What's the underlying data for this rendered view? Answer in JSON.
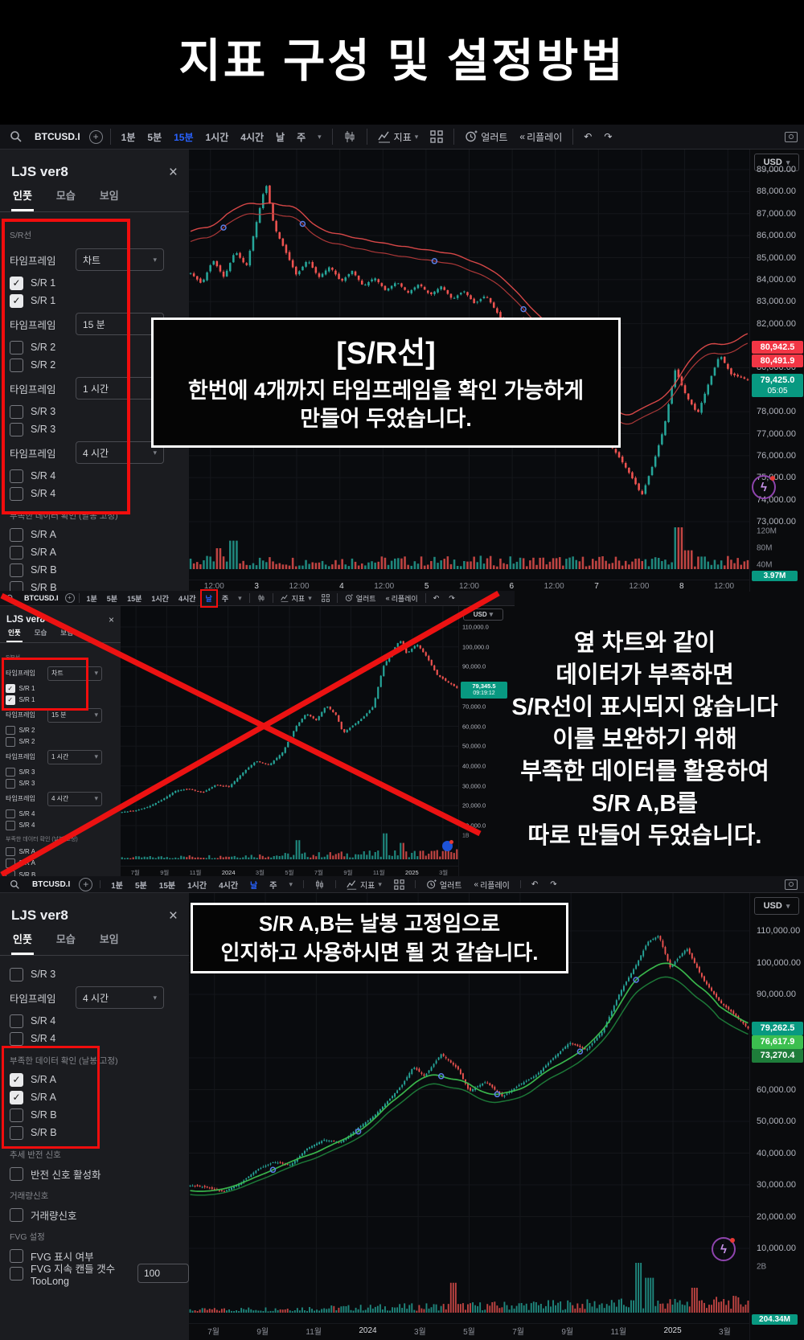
{
  "page": {
    "title": "지표 구성 및 설정방법"
  },
  "colors": {
    "accent": "#2962ff",
    "candle_up": "#26a69a",
    "candle_down": "#ef5350",
    "badge_red": "#f23645",
    "badge_teal": "#089981",
    "badge_green_light": "#3cbf4f",
    "badge_green_dark": "#1e7d3a",
    "annotation_red": "#f10d0d"
  },
  "toolbar": {
    "symbol": "BTCUSD.I",
    "timeframes": [
      "1분",
      "5분",
      "15분",
      "1시간",
      "4시간",
      "날",
      "주"
    ],
    "indicator_label": "지표",
    "alert_label": "얼러트",
    "replay_label": "리플레이",
    "currency": "USD"
  },
  "panel": {
    "title": "LJS ver8",
    "tabs": [
      "인풋",
      "모습",
      "보임"
    ],
    "close_glyph": "×"
  },
  "section1": {
    "active_tf": "15분",
    "rows": [
      {
        "t": "label",
        "text": "S/R선"
      },
      {
        "t": "drop",
        "label": "타임프레임",
        "value": "차트"
      },
      {
        "t": "check",
        "label": "S/R 1",
        "on": true
      },
      {
        "t": "check",
        "label": "S/R 1",
        "on": true
      },
      {
        "t": "drop",
        "label": "타임프레임",
        "value": "15 분"
      },
      {
        "t": "check",
        "label": "S/R 2",
        "on": false
      },
      {
        "t": "check",
        "label": "S/R 2",
        "on": false
      },
      {
        "t": "drop",
        "label": "타임프레임",
        "value": "1 시간"
      },
      {
        "t": "check",
        "label": "S/R 3",
        "on": false
      },
      {
        "t": "check",
        "label": "S/R 3",
        "on": false
      },
      {
        "t": "drop",
        "label": "타임프레임",
        "value": "4 시간"
      },
      {
        "t": "check",
        "label": "S/R 4",
        "on": false
      },
      {
        "t": "check",
        "label": "S/R 4",
        "on": false
      },
      {
        "t": "label",
        "text": "부족한 데이터 확인 (날봉 고정)"
      },
      {
        "t": "check",
        "label": "S/R A",
        "on": false
      },
      {
        "t": "check",
        "label": "S/R A",
        "on": false
      },
      {
        "t": "check",
        "label": "S/R B",
        "on": false
      },
      {
        "t": "check",
        "label": "S/R B",
        "on": false
      }
    ],
    "overlay": {
      "title": "[S/R선]",
      "lines": [
        "한번에 4개까지 타임프레임을 확인 가능하게",
        "만들어 두었습니다."
      ]
    }
  },
  "section2": {
    "active_tf": "날",
    "boxed_tf": "날",
    "rows": [
      {
        "t": "label",
        "text": "S/R선"
      },
      {
        "t": "drop",
        "label": "타임프레임",
        "value": "차트"
      },
      {
        "t": "check",
        "label": "S/R 1",
        "on": true
      },
      {
        "t": "check",
        "label": "S/R 1",
        "on": true
      },
      {
        "t": "drop",
        "label": "타임프레임",
        "value": "15 분"
      },
      {
        "t": "check",
        "label": "S/R 2",
        "on": false
      },
      {
        "t": "check",
        "label": "S/R 2",
        "on": false
      },
      {
        "t": "drop",
        "label": "타임프레임",
        "value": "1 시간"
      },
      {
        "t": "check",
        "label": "S/R 3",
        "on": false
      },
      {
        "t": "check",
        "label": "S/R 3",
        "on": false
      },
      {
        "t": "drop",
        "label": "타임프레임",
        "value": "4 시간"
      },
      {
        "t": "check",
        "label": "S/R 4",
        "on": false
      },
      {
        "t": "check",
        "label": "S/R 4",
        "on": false
      },
      {
        "t": "label",
        "text": "부족한 데이터 확인 (날봉 고정)"
      },
      {
        "t": "check",
        "label": "S/R A",
        "on": false
      },
      {
        "t": "check",
        "label": "S/R A",
        "on": false
      },
      {
        "t": "check",
        "label": "S/R B",
        "on": false
      },
      {
        "t": "check",
        "label": "S/R B",
        "on": false
      }
    ],
    "note_lines": [
      "옆 차트와 같이",
      "데이터가 부족하면",
      "S/R선이 표시되지 않습니다",
      "이를 보완하기 위해",
      "부족한 데이터를 활용하여",
      "S/R A,B를",
      "따로 만들어 두었습니다."
    ]
  },
  "section3": {
    "active_tf": "날",
    "rows": [
      {
        "t": "check",
        "label": "S/R 3",
        "on": false
      },
      {
        "t": "drop",
        "label": "타임프레임",
        "value": "4 시간"
      },
      {
        "t": "check",
        "label": "S/R 4",
        "on": false
      },
      {
        "t": "check",
        "label": "S/R 4",
        "on": false
      },
      {
        "t": "label",
        "text": "부족한 데이터 확인 (날봉 고정)"
      },
      {
        "t": "check",
        "label": "S/R A",
        "on": true
      },
      {
        "t": "check",
        "label": "S/R A",
        "on": true
      },
      {
        "t": "check",
        "label": "S/R B",
        "on": false
      },
      {
        "t": "check",
        "label": "S/R B",
        "on": false
      },
      {
        "t": "label",
        "text": "추세 반전 신호"
      },
      {
        "t": "check",
        "label": "반전 신호 활성화",
        "on": false
      },
      {
        "t": "label",
        "text": "거래량신호"
      },
      {
        "t": "check",
        "label": "거래량신호",
        "on": false
      },
      {
        "t": "label",
        "text": "FVG 설정"
      },
      {
        "t": "check",
        "label": "FVG 표시 여부",
        "on": false
      },
      {
        "t": "checkinput",
        "label": "FVG 지속 캔들 갯수  TooLong",
        "on": false,
        "value": "100"
      }
    ],
    "overlay_lines": [
      "S/R A,B는 날봉 고정임으로",
      "인지하고 사용하시면 될 것 같습니다."
    ]
  },
  "chart_data": [
    {
      "id": "c1",
      "type": "candlestick",
      "symbol": "BTCUSD.I",
      "timeframe": "15분",
      "currency": "USD",
      "price_min": 73000,
      "price_max": 89000,
      "price_labels": [
        {
          "t": "89,000.00",
          "v": 89000
        },
        {
          "t": "88,000.00",
          "v": 88000
        },
        {
          "t": "87,000.00",
          "v": 87000
        },
        {
          "t": "86,000.00",
          "v": 86000
        },
        {
          "t": "85,000.00",
          "v": 85000
        },
        {
          "t": "84,000.00",
          "v": 84000
        },
        {
          "t": "83,000.00",
          "v": 83000
        },
        {
          "t": "82,000.00",
          "v": 82000
        },
        {
          "t": "80,000.00",
          "v": 80000
        },
        {
          "t": "78,000.00",
          "v": 78000
        },
        {
          "t": "77,000.00",
          "v": 77000
        },
        {
          "t": "76,000.00",
          "v": 76000
        },
        {
          "t": "75,000.00",
          "v": 75000
        },
        {
          "t": "74,000.00",
          "v": 74000
        },
        {
          "t": "73,000.00",
          "v": 73000
        }
      ],
      "badges": [
        {
          "t": "80,942.5",
          "v": 80942,
          "c": "badge_red"
        },
        {
          "t": "80,491.9",
          "v": 80491,
          "c": "badge_red"
        },
        {
          "t": "79,425.0",
          "v": 79425,
          "c": "badge_teal",
          "sub": "05:05"
        }
      ],
      "volume_labels": [
        "120M",
        "80M",
        "40M"
      ],
      "volume_badge": "3.97M",
      "time_labels": [
        "12:00",
        "3",
        "12:00",
        "4",
        "12:00",
        "5",
        "12:00",
        "6",
        "12:00",
        "7",
        "12:00",
        "8",
        "12:00"
      ],
      "series": [
        [
          0,
          84300
        ],
        [
          2,
          83800
        ],
        [
          4,
          84900
        ],
        [
          6,
          84100
        ],
        [
          8,
          85300
        ],
        [
          10,
          84600
        ],
        [
          12,
          86800
        ],
        [
          13.5,
          88400
        ],
        [
          15,
          86400
        ],
        [
          17,
          85300
        ],
        [
          19,
          84200
        ],
        [
          21,
          84900
        ],
        [
          23,
          84100
        ],
        [
          25,
          84600
        ],
        [
          27,
          83900
        ],
        [
          29,
          84400
        ],
        [
          31,
          83700
        ],
        [
          33,
          84100
        ],
        [
          35,
          83500
        ],
        [
          37,
          83900
        ],
        [
          39,
          83400
        ],
        [
          41,
          83800
        ],
        [
          43,
          83300
        ],
        [
          45,
          83700
        ],
        [
          47,
          83100
        ],
        [
          49,
          83500
        ],
        [
          51,
          82900
        ],
        [
          53,
          83300
        ],
        [
          55,
          82500
        ],
        [
          57,
          81800
        ],
        [
          59,
          82300
        ],
        [
          61,
          81200
        ],
        [
          63,
          80300
        ],
        [
          65,
          79600
        ],
        [
          67,
          78900
        ],
        [
          69,
          79400
        ],
        [
          71,
          78300
        ],
        [
          73,
          77400
        ],
        [
          75,
          76600
        ],
        [
          77,
          75900
        ],
        [
          79,
          75100
        ],
        [
          81,
          74200
        ],
        [
          83,
          75600
        ],
        [
          85,
          77300
        ],
        [
          87,
          79900
        ],
        [
          89,
          78700
        ],
        [
          91,
          77900
        ],
        [
          93,
          79300
        ],
        [
          95,
          80600
        ],
        [
          97,
          79700
        ],
        [
          100,
          79450
        ]
      ]
    },
    {
      "id": "c2",
      "type": "candlestick",
      "symbol": "BTCUSD.I",
      "timeframe": "날",
      "currency": "USD",
      "price_min": 10000,
      "price_max": 110000,
      "price_labels": [
        {
          "t": "110,000.0",
          "v": 110000
        },
        {
          "t": "100,000.0",
          "v": 100000
        },
        {
          "t": "90,000.0",
          "v": 90000
        },
        {
          "t": "70,000.0",
          "v": 70000
        },
        {
          "t": "60,000.0",
          "v": 60000
        },
        {
          "t": "50,000.0",
          "v": 50000
        },
        {
          "t": "40,000.0",
          "v": 40000
        },
        {
          "t": "30,000.0",
          "v": 30000
        },
        {
          "t": "20,000.0",
          "v": 20000
        },
        {
          "t": "10,000.0",
          "v": 10000
        }
      ],
      "badges": [
        {
          "t": "79,345.5",
          "v": 79345,
          "c": "badge_teal",
          "sub": "09:19:12"
        }
      ],
      "volume_labels": [
        "1B"
      ],
      "volume_badge": "",
      "time_labels": [
        "7월",
        "9월",
        "11월",
        "2024",
        "3월",
        "5월",
        "7월",
        "9월",
        "11월",
        "2025",
        "3월"
      ],
      "series": [
        [
          0,
          16800
        ],
        [
          4,
          17500
        ],
        [
          8,
          19500
        ],
        [
          12,
          23000
        ],
        [
          16,
          27500
        ],
        [
          20,
          28500
        ],
        [
          24,
          26500
        ],
        [
          28,
          30500
        ],
        [
          32,
          29500
        ],
        [
          36,
          36500
        ],
        [
          40,
          42500
        ],
        [
          44,
          40500
        ],
        [
          48,
          47000
        ],
        [
          52,
          60000
        ],
        [
          55,
          66500
        ],
        [
          58,
          63000
        ],
        [
          61,
          70500
        ],
        [
          64,
          65500
        ],
        [
          66,
          56500
        ],
        [
          69,
          60500
        ],
        [
          72,
          64500
        ],
        [
          75,
          70000
        ],
        [
          78,
          90000
        ],
        [
          81,
          98500
        ],
        [
          83,
          103500
        ],
        [
          85,
          96500
        ],
        [
          88,
          101500
        ],
        [
          91,
          95000
        ],
        [
          94,
          86000
        ],
        [
          97,
          82500
        ],
        [
          100,
          79350
        ]
      ]
    },
    {
      "id": "c3",
      "type": "candlestick",
      "symbol": "BTCUSD.I",
      "timeframe": "날",
      "currency": "USD",
      "price_min": 10000,
      "price_max": 110000,
      "price_labels": [
        {
          "t": "110,000.00",
          "v": 110000
        },
        {
          "t": "100,000.00",
          "v": 100000
        },
        {
          "t": "90,000.00",
          "v": 90000
        },
        {
          "t": "70,000.00",
          "v": 70000
        },
        {
          "t": "60,000.00",
          "v": 60000
        },
        {
          "t": "50,000.00",
          "v": 50000
        },
        {
          "t": "40,000.00",
          "v": 40000
        },
        {
          "t": "30,000.00",
          "v": 30000
        },
        {
          "t": "20,000.00",
          "v": 20000
        },
        {
          "t": "10,000.00",
          "v": 10000
        }
      ],
      "badges": [
        {
          "t": "79,262.5",
          "v": 79262,
          "c": "badge_teal"
        },
        {
          "t": "76,617.9",
          "v": 76617,
          "c": "badge_green_light"
        },
        {
          "t": "73,270.4",
          "v": 73270,
          "c": "badge_green_dark"
        }
      ],
      "volume_labels": [
        "2B"
      ],
      "volume_badge": "204.34M",
      "time_labels": [
        "7월",
        "9월",
        "11월",
        "2024",
        "3월",
        "5월",
        "7월",
        "9월",
        "11월",
        "2025",
        "3월"
      ],
      "series": [
        [
          0,
          29800
        ],
        [
          3,
          29200
        ],
        [
          6,
          27800
        ],
        [
          9,
          30500
        ],
        [
          12,
          34800
        ],
        [
          15,
          37200
        ],
        [
          18,
          36200
        ],
        [
          21,
          41500
        ],
        [
          24,
          44200
        ],
        [
          27,
          43400
        ],
        [
          30,
          47800
        ],
        [
          33,
          51800
        ],
        [
          36,
          57500
        ],
        [
          38,
          61500
        ],
        [
          40,
          67200
        ],
        [
          42,
          64200
        ],
        [
          45,
          71200
        ],
        [
          48,
          66500
        ],
        [
          50,
          59500
        ],
        [
          53,
          62500
        ],
        [
          56,
          57800
        ],
        [
          59,
          61500
        ],
        [
          62,
          64500
        ],
        [
          65,
          69800
        ],
        [
          68,
          74800
        ],
        [
          71,
          72500
        ],
        [
          74,
          78500
        ],
        [
          77,
          90500
        ],
        [
          80,
          99500
        ],
        [
          82,
          106500
        ],
        [
          84,
          108500
        ],
        [
          86,
          98500
        ],
        [
          89,
          104500
        ],
        [
          92,
          94500
        ],
        [
          95,
          87500
        ],
        [
          97,
          84500
        ],
        [
          100,
          79260
        ]
      ]
    }
  ]
}
